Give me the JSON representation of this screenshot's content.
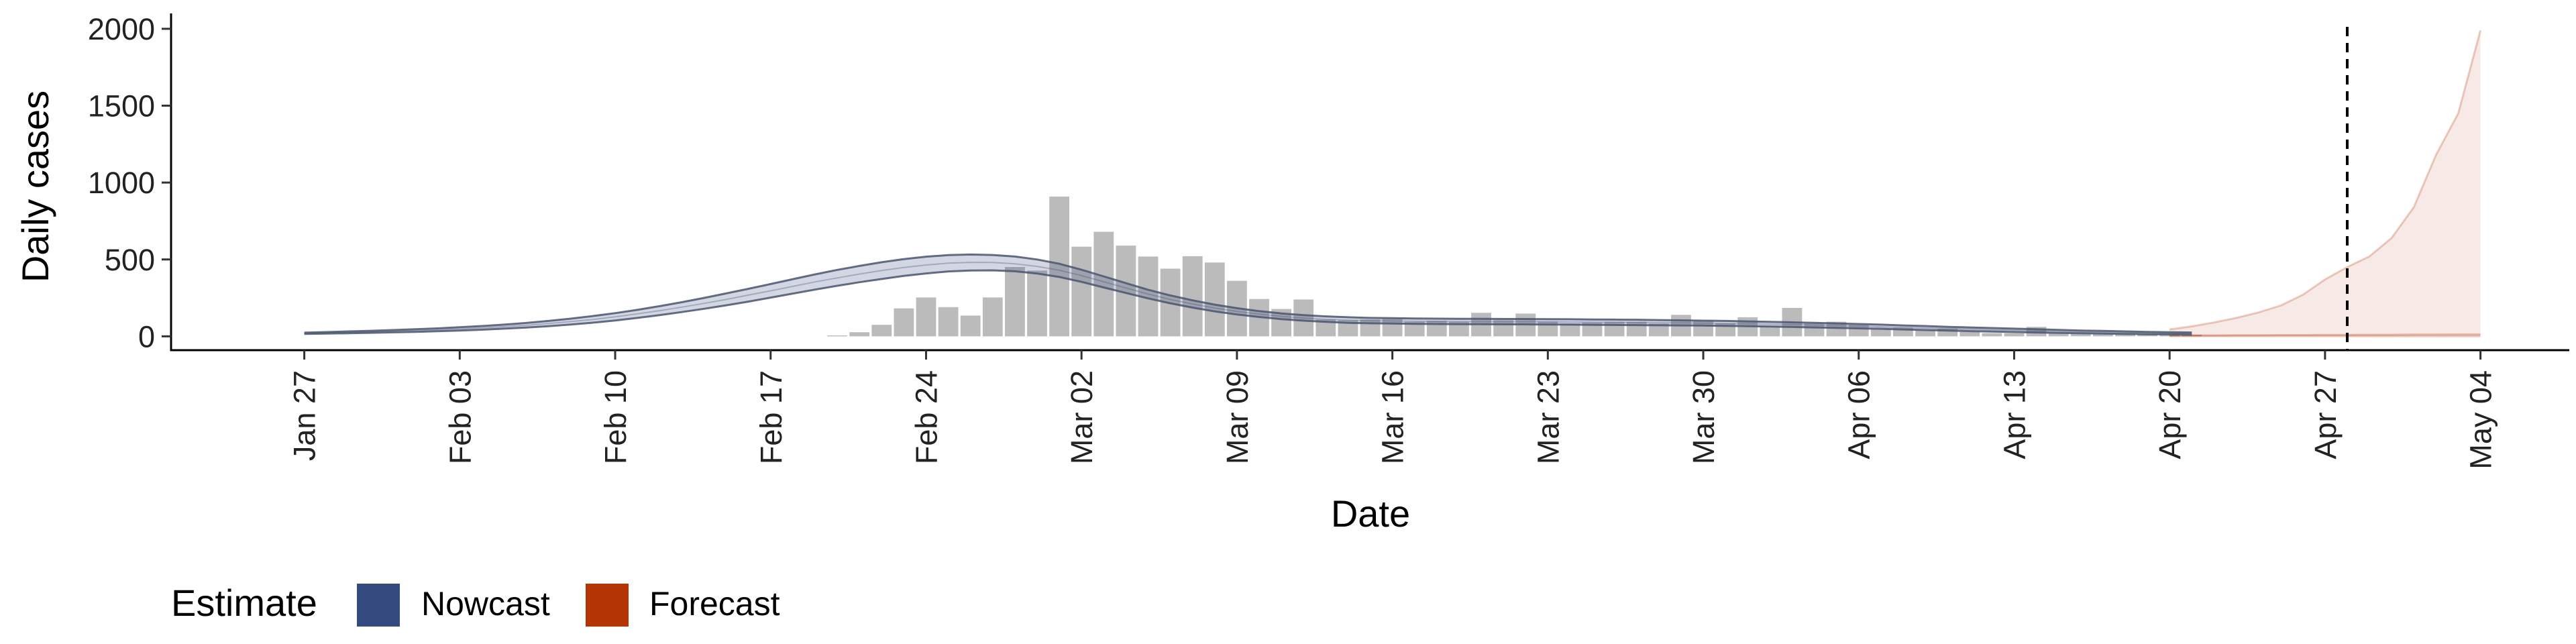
{
  "chart_data": {
    "type": "bar",
    "title": "",
    "xlabel": "Date",
    "ylabel": "Daily cases",
    "ylim": [
      -90,
      2100
    ],
    "yticks": [
      0,
      500,
      1000,
      1500,
      2000
    ],
    "xlim": [
      "2020-01-21",
      "2020-05-08"
    ],
    "x_ticks": [
      {
        "date": "2020-01-27",
        "label": "Jan 27"
      },
      {
        "date": "2020-02-03",
        "label": "Feb 03"
      },
      {
        "date": "2020-02-10",
        "label": "Feb 10"
      },
      {
        "date": "2020-02-17",
        "label": "Feb 17"
      },
      {
        "date": "2020-02-24",
        "label": "Feb 24"
      },
      {
        "date": "2020-03-02",
        "label": "Mar 02"
      },
      {
        "date": "2020-03-09",
        "label": "Mar 09"
      },
      {
        "date": "2020-03-16",
        "label": "Mar 16"
      },
      {
        "date": "2020-03-23",
        "label": "Mar 23"
      },
      {
        "date": "2020-03-30",
        "label": "Mar 30"
      },
      {
        "date": "2020-04-06",
        "label": "Apr 06"
      },
      {
        "date": "2020-04-13",
        "label": "Apr 13"
      },
      {
        "date": "2020-04-20",
        "label": "Apr 20"
      },
      {
        "date": "2020-04-27",
        "label": "Apr 27"
      },
      {
        "date": "2020-05-04",
        "label": "May 04"
      }
    ],
    "vline_date": "2020-04-28",
    "legend": {
      "title": "Estimate",
      "position": "bottom-left",
      "items": [
        {
          "label": "Nowcast",
          "color": "#354b7f"
        },
        {
          "label": "Forecast",
          "color": "#b33506"
        }
      ]
    },
    "reported_cases": {
      "color": "#bbbbbb",
      "start_date": "2020-02-20",
      "values": [
        6,
        27,
        75,
        182,
        253,
        190,
        135,
        253,
        451,
        428,
        909,
        583,
        680,
        590,
        519,
        440,
        521,
        480,
        361,
        243,
        178,
        240,
        110,
        105,
        110,
        115,
        95,
        101,
        95,
        153,
        105,
        148,
        96,
        83,
        90,
        95,
        95,
        83,
        140,
        103,
        84,
        124,
        66,
        185,
        83,
        95,
        75,
        48,
        56,
        40,
        50,
        30,
        21,
        20,
        62,
        20,
        18,
        17,
        15,
        15,
        12,
        10
      ]
    },
    "nowcast": {
      "color": "#354b7f",
      "start_date": "2020-01-27",
      "median": [
        20,
        23,
        26,
        29,
        33,
        37,
        42,
        48,
        55,
        63,
        72,
        83,
        96,
        110,
        127,
        146,
        167,
        190,
        214,
        240,
        268,
        296,
        325,
        354,
        380,
        405,
        428,
        448,
        464,
        476,
        481,
        480,
        472,
        455,
        430,
        395,
        355,
        315,
        275,
        240,
        210,
        184,
        162,
        145,
        130,
        119,
        111,
        105,
        102,
        100,
        98,
        97,
        96,
        96,
        95,
        95,
        94,
        93,
        92,
        91,
        90,
        89,
        88,
        86,
        84,
        82,
        79,
        76,
        73,
        70,
        66,
        62,
        58,
        54,
        50,
        46,
        42,
        39,
        35,
        32,
        29,
        26,
        24,
        22,
        20,
        18
      ],
      "upper": [
        24,
        28,
        32,
        36,
        41,
        46,
        52,
        59,
        67,
        76,
        87,
        100,
        115,
        132,
        151,
        172,
        196,
        222,
        250,
        279,
        309,
        340,
        372,
        403,
        432,
        458,
        482,
        502,
        518,
        528,
        532,
        529,
        519,
        500,
        472,
        433,
        390,
        346,
        303,
        266,
        234,
        206,
        183,
        164,
        149,
        138,
        130,
        124,
        120,
        118,
        116,
        115,
        114,
        114,
        113,
        113,
        112,
        111,
        110,
        109,
        108,
        106,
        104,
        102,
        100,
        97,
        94,
        91,
        88,
        84,
        80,
        76,
        71,
        67,
        62,
        58,
        54,
        50,
        46,
        42,
        38,
        35,
        32,
        29,
        27,
        25
      ],
      "lower": [
        16,
        18,
        20,
        23,
        26,
        29,
        33,
        38,
        43,
        50,
        57,
        66,
        77,
        89,
        103,
        120,
        138,
        158,
        179,
        202,
        226,
        252,
        278,
        304,
        329,
        352,
        373,
        393,
        409,
        422,
        428,
        429,
        423,
        408,
        386,
        354,
        318,
        282,
        247,
        215,
        187,
        162,
        142,
        126,
        112,
        102,
        94,
        88,
        85,
        83,
        81,
        80,
        79,
        79,
        78,
        78,
        77,
        76,
        75,
        74,
        73,
        72,
        71,
        70,
        68,
        66,
        64,
        61,
        58,
        55,
        52,
        49,
        45,
        41,
        38,
        34,
        31,
        28,
        25,
        22,
        20,
        18,
        16,
        14,
        13,
        11
      ]
    },
    "forecast": {
      "color": "#b33506",
      "start_date": "2020-04-20",
      "median": [
        5,
        6,
        6,
        7,
        7,
        8,
        8,
        9,
        9,
        10,
        10,
        11,
        11,
        12,
        12
      ],
      "upper": [
        45,
        65,
        90,
        120,
        155,
        200,
        270,
        370,
        450,
        520,
        640,
        840,
        1180,
        1450,
        1990
      ],
      "lower": [
        1,
        1,
        1,
        1,
        1,
        1,
        1,
        1,
        1,
        1,
        1,
        1,
        1,
        1,
        1
      ]
    }
  }
}
